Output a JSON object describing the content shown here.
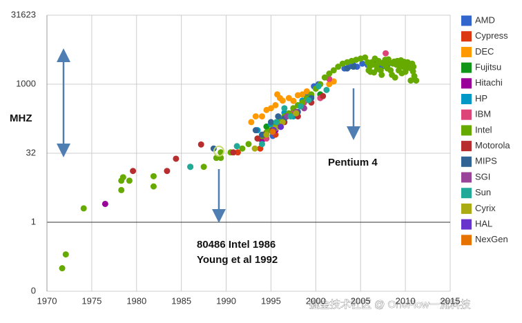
{
  "chart_data": {
    "type": "scatter",
    "ylabel": "MHZ",
    "log_y": true,
    "grid": true,
    "baseline": 1,
    "legend": "right",
    "xlim": [
      1970,
      2015
    ],
    "xticks": [
      1970,
      1975,
      1980,
      1985,
      1990,
      1995,
      2000,
      2005,
      2010,
      2015
    ],
    "ylim": [
      0.031623,
      31623
    ],
    "yticks": [
      {
        "value": 0.031623,
        "label": "0"
      },
      1,
      {
        "value": 31.623,
        "label": "32"
      },
      1000,
      31623
    ],
    "annotations": [
      "Pentium 4",
      "80486 Intel 1986",
      "Young et al 1992"
    ],
    "watermark": "掘金技术社区 @ OneFlow一流科技",
    "series": [
      {
        "name": "AMD",
        "color": "#3366cc",
        "x": [
          1995.2,
          1996,
          1999,
          1999.8,
          2000.3,
          2003.2,
          2003.7,
          2004.2,
          2004.6,
          2005.2,
          2005.8,
          2006.5,
          2007.3,
          2008,
          2008.7,
          2009.5,
          2010.2
        ],
        "values": [
          75,
          133,
          600,
          900,
          1000,
          2200,
          2400,
          2600,
          2400,
          2800,
          2600,
          3000,
          2300,
          2600,
          3000,
          3200,
          2800
        ]
      },
      {
        "name": "Cypress",
        "color": "#dc3912",
        "x": [
          1991.3,
          1993.8,
          1995.5
        ],
        "values": [
          33,
          40,
          80
        ]
      },
      {
        "name": "DEC",
        "color": "#ff9900",
        "x": [
          1992.8,
          1993.3,
          1994,
          1994.5,
          1995,
          1995.5,
          1995.7,
          1996,
          1996.3,
          1997,
          1997.5,
          1998,
          1998.5,
          1999,
          2001.5,
          2002
        ],
        "values": [
          150,
          200,
          200,
          275,
          300,
          350,
          600,
          500,
          440,
          500,
          433,
          575,
          600,
          700,
          1000,
          1150
        ]
      },
      {
        "name": "Fujitsu",
        "color": "#109618",
        "x": [
          1994.5,
          1996.2,
          1997.5,
          1999.2,
          2000.5
        ],
        "values": [
          120,
          160,
          300,
          450,
          600
        ]
      },
      {
        "name": "Hitachi",
        "color": "#990099",
        "x": [
          1976.5,
          1994,
          1995.5
        ],
        "values": [
          2.5,
          60,
          100
        ]
      },
      {
        "name": "HP",
        "color": "#0099c6",
        "x": [
          1993.5,
          1995,
          1996,
          1996.5,
          1997.5,
          1998.5,
          1999.5
        ],
        "values": [
          100,
          135,
          180,
          240,
          200,
          440,
          550
        ]
      },
      {
        "name": "IBM",
        "color": "#dd4477",
        "x": [
          1994.5,
          1996,
          1997.5,
          1998.7,
          2000.5,
          2001.5,
          2007.8
        ],
        "values": [
          66,
          133,
          250,
          400,
          500,
          1300,
          4700
        ]
      },
      {
        "name": "Intel",
        "color": "#66aa00",
        "x": [
          1971.7,
          1972.1,
          1974.1,
          1978.3,
          1978.3,
          1978.5,
          1979.2,
          1981.9,
          1981.9,
          1987.5,
          1988.9,
          1989.4,
          1989.4,
          1990.5,
          1991.8,
          1992.5,
          1993.5,
          1994,
          1994.5,
          1995,
          1995.5,
          1996,
          1996.5,
          1997,
          1997.5,
          1998,
          1998.5,
          1999,
          1999.5,
          2000,
          2000.5,
          2001,
          2001.5,
          2002,
          2002.5,
          2003,
          2003.5,
          2004,
          2004.5,
          2005,
          2005.5,
          2006,
          2006.25,
          2006.5,
          2006.75,
          2007,
          2007.25,
          2007.5,
          2007.75,
          2008,
          2008.25,
          2008.5,
          2008.75,
          2009,
          2009.25,
          2009.5,
          2009.75,
          2010,
          2010.25,
          2010.5,
          2010.75,
          2011,
          2006.1,
          2006.35,
          2006.6,
          2006.85,
          2007.1,
          2007.35,
          2007.6,
          2007.85,
          2008.1,
          2008.35,
          2008.6,
          2008.85,
          2009.1,
          2009.35,
          2009.6,
          2009.85,
          2010.1,
          2010.35,
          2010.6,
          2010.85,
          2005.8,
          2005.9,
          2011.2,
          2010.9
        ],
        "values": [
          0.1,
          0.2,
          2,
          5,
          8,
          9.5,
          8,
          6,
          10,
          16,
          25,
          33,
          25,
          33,
          40,
          50,
          66,
          75,
          90,
          100,
          120,
          150,
          200,
          233,
          300,
          350,
          400,
          500,
          600,
          800,
          1000,
          1400,
          1700,
          2000,
          2400,
          2800,
          3000,
          3200,
          3400,
          3600,
          3800,
          2400,
          3000,
          1800,
          2600,
          3200,
          2000,
          2800,
          3400,
          2200,
          2930,
          1600,
          3100,
          2660,
          2000,
          3300,
          2400,
          1860,
          3000,
          2260,
          2800,
          1500,
          1860,
          2660,
          3600,
          2130,
          2930,
          1600,
          3000,
          2400,
          3460,
          2000,
          2800,
          1400,
          3200,
          2530,
          1730,
          3060,
          2260,
          2660,
          1200,
          1900,
          3000,
          2000,
          1200,
          2400
        ]
      },
      {
        "name": "Motorola",
        "color": "#b82e2e",
        "x": [
          1979.6,
          1983.4,
          1984.4,
          1987.2,
          1990.8,
          1993.5,
          1994.2,
          1995.2,
          1996.5,
          1998,
          1999.5,
          2000.8
        ],
        "values": [
          13,
          13,
          24,
          49,
          33,
          66,
          80,
          100,
          150,
          200,
          400,
          550
        ]
      },
      {
        "name": "MIPS",
        "color": "#316395",
        "x": [
          1986,
          1988.6,
          1993.3,
          1994,
          1995,
          1995.8,
          1996.5,
          1998,
          1999.5,
          2003.5,
          2004.2
        ],
        "values": [
          16,
          40,
          100,
          80,
          150,
          200,
          180,
          250,
          500,
          2200,
          2400
        ]
      },
      {
        "name": "SGI",
        "color": "#994499",
        "x": [
          1995.2,
          1996.8,
          1997.8,
          1998.7
        ],
        "values": [
          90,
          200,
          250,
          300
        ]
      },
      {
        "name": "Sun",
        "color": "#22aa99",
        "x": [
          1986,
          1991.2,
          1994,
          1995.6,
          1996.5,
          1997.2,
          1998.3,
          1999.2,
          2000.3,
          2001.2
        ],
        "values": [
          16,
          45,
          50,
          150,
          300,
          200,
          330,
          450,
          900,
          750
        ]
      },
      {
        "name": "Cyrix",
        "color": "#aaaa11",
        "x": [
          1993.2,
          1994.5,
          1995.5,
          1996.3,
          1997.8
        ],
        "values": [
          40,
          80,
          110,
          150,
          233
        ]
      },
      {
        "name": "HAL",
        "color": "#6633cc",
        "x": [
          1995.3,
          1996.1
        ],
        "values": [
          101,
          118
        ]
      },
      {
        "name": "NexGen",
        "color": "#e67300",
        "x": [
          1995.2
        ],
        "values": [
          93
        ]
      }
    ]
  }
}
